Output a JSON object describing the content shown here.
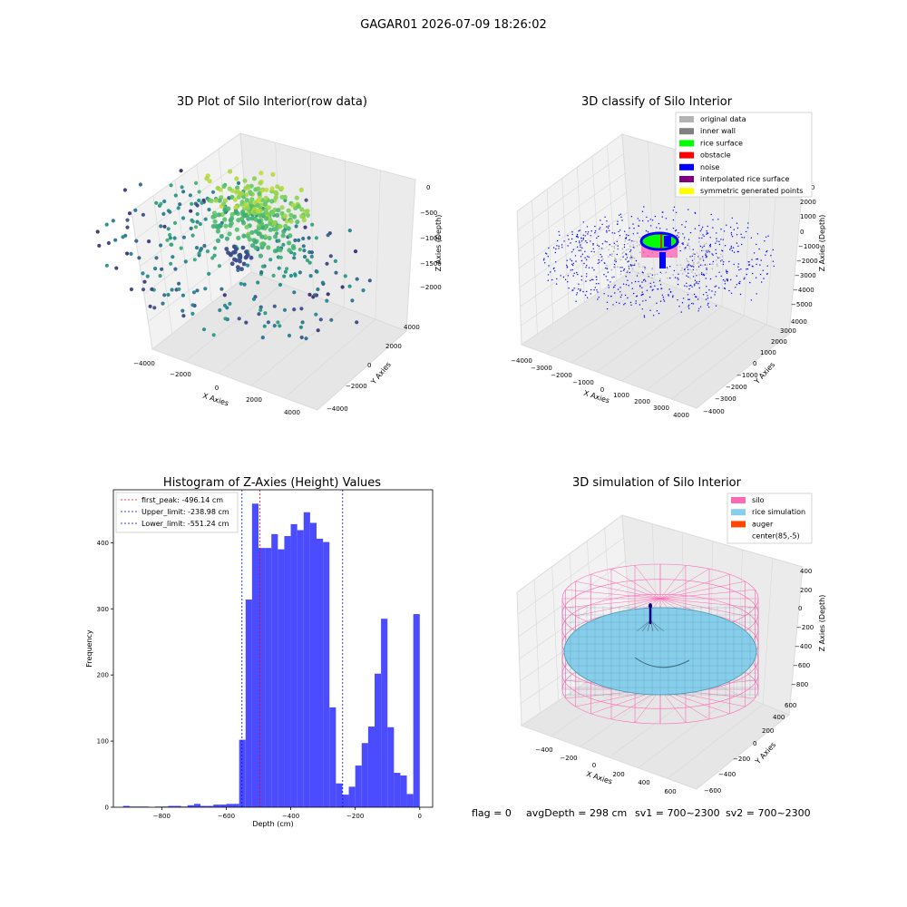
{
  "figure": {
    "suptitle": "GAGAR01 2026-07-09 18:26:02",
    "footer": {
      "flag": "flag = 0",
      "avg_depth": "avgDepth = 298 cm",
      "sv1": "sv1 = 700~2300",
      "sv2": "sv2 = 700~2300"
    }
  },
  "chart_data": [
    {
      "type": "scatter",
      "title": "3D Plot of Silo Interior(row data)",
      "xlabel": "X Axies",
      "ylabel": "Y Axies",
      "zlabel": "Z Axies (Depth)",
      "xticks": [
        "−4000",
        "−2000",
        "0",
        "2000",
        "4000"
      ],
      "yticks": [
        "−4000",
        "−2000",
        "0",
        "2000",
        "4000"
      ],
      "zticks": [
        "0",
        "−500",
        "−1000",
        "−1500",
        "−2000"
      ],
      "colormap": "viridis",
      "zlim": [
        -2200,
        0
      ]
    },
    {
      "type": "scatter",
      "title": "3D classify of Silo Interior",
      "xlabel": "X Axies",
      "ylabel": "Y Axies",
      "zlabel": "Z Axies (Depth)",
      "xticks": [
        "−4000",
        "−3000",
        "−2000",
        "−1000",
        "0",
        "1000",
        "2000",
        "3000",
        "4000"
      ],
      "yticks": [
        "−4000",
        "−3000",
        "−2000",
        "−1000",
        "0",
        "1000",
        "2000",
        "3000",
        "4000"
      ],
      "zticks": [
        "2000",
        "1000",
        "0",
        "−1000",
        "−2000",
        "−3000",
        "−4000",
        "−5000"
      ],
      "zticks_top": "000",
      "legend_position": "top-right",
      "legend": [
        {
          "label": "original data",
          "color": "#b3b3b3"
        },
        {
          "label": "inner wall",
          "color": "#808080"
        },
        {
          "label": "rice surface",
          "color": "#00ff00"
        },
        {
          "label": "obstacle",
          "color": "#ff0000"
        },
        {
          "label": "noise",
          "color": "#0000ff"
        },
        {
          "label": "interpolated rice surface",
          "color": "#800080"
        },
        {
          "label": "symmetric generated points",
          "color": "#ffff00"
        }
      ]
    },
    {
      "type": "bar",
      "title": "Histogram of Z-Axies (Height) Values",
      "xlabel": "Depth (cm)",
      "ylabel": "Frequency",
      "xlim": [
        -950,
        40
      ],
      "ylim": [
        0,
        480
      ],
      "xticks": [
        -800,
        -600,
        -400,
        -200,
        0
      ],
      "yticks": [
        0,
        100,
        200,
        300,
        400
      ],
      "bar_color": "#4b4bff",
      "bin_edges": [
        -920,
        -900,
        -880,
        -860,
        -840,
        -820,
        -800,
        -780,
        -760,
        -740,
        -720,
        -700,
        -680,
        -660,
        -640,
        -620,
        -600,
        -580,
        -560,
        -540,
        -520,
        -500,
        -480,
        -460,
        -440,
        -420,
        -400,
        -380,
        -360,
        -340,
        -320,
        -300,
        -280,
        -260,
        -240,
        -220,
        -200,
        -180,
        -160,
        -140,
        -120,
        -100,
        -80,
        -60,
        -40,
        -20,
        0
      ],
      "counts": [
        2,
        1,
        1,
        1,
        0,
        1,
        1,
        2,
        2,
        1,
        3,
        5,
        2,
        2,
        4,
        4,
        5,
        5,
        102,
        314,
        459,
        392,
        392,
        413,
        390,
        410,
        428,
        419,
        446,
        430,
        406,
        401,
        151,
        36,
        19,
        31,
        63,
        97,
        122,
        202,
        285,
        121,
        52,
        48,
        20,
        292
      ],
      "vlines": [
        {
          "label": "first_peak: -496.14 cm",
          "x": -496.14,
          "color": "#ff0000"
        },
        {
          "label": "Upper_limit: -238.98 cm",
          "x": -238.98,
          "color": "#0000ff"
        },
        {
          "label": "Lower_limit: -551.24 cm",
          "x": -551.24,
          "color": "#0000ff"
        }
      ],
      "legend_position": "top-left"
    },
    {
      "type": "scatter",
      "title": "3D simulation of Silo Interior",
      "xlabel": "X Axies",
      "ylabel": "Y Axies",
      "zlabel": "Z Axies (Depth)",
      "xticks": [
        "−400",
        "−200",
        "0",
        "200",
        "400",
        "600"
      ],
      "yticks": [
        "−600",
        "−400",
        "−200",
        "0",
        "200",
        "400",
        "600"
      ],
      "zticks": [
        "400",
        "200",
        "0",
        "−200",
        "−400",
        "−600",
        "−800"
      ],
      "legend_position": "top-right",
      "legend": [
        {
          "label": "silo",
          "color": "#ff69b4"
        },
        {
          "label": "rice simulation",
          "color": "#87ceeb"
        },
        {
          "label": "auger",
          "color": "#ff4500"
        },
        {
          "label": "center(85,-5)",
          "color": ""
        }
      ]
    }
  ]
}
